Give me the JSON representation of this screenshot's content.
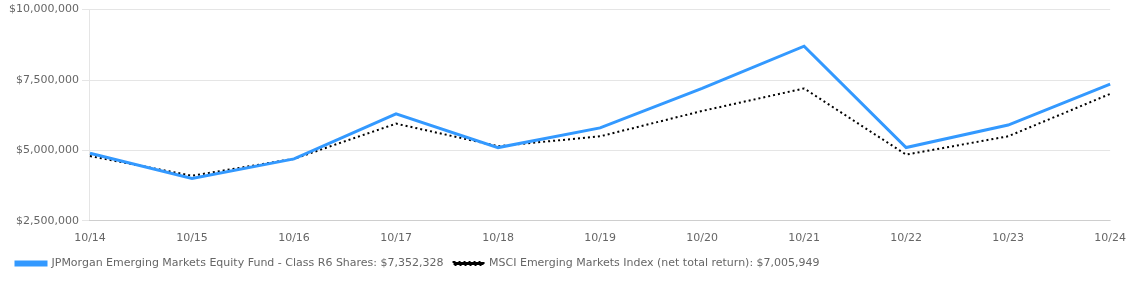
{
  "chart_data": {
    "type": "line",
    "categories": [
      "10/14",
      "10/15",
      "10/16",
      "10/17",
      "10/18",
      "10/19",
      "10/20",
      "10/21",
      "10/22",
      "10/23",
      "10/24"
    ],
    "series": [
      {
        "name": "JPMorgan Emerging Markets Equity Fund - Class R6 Shares: $7,352,328",
        "color": "#3399FF",
        "line_style": "solid",
        "values": [
          4900000,
          4000000,
          4700000,
          6300000,
          5100000,
          5800000,
          7200000,
          8700000,
          5100000,
          5900000,
          7352328
        ]
      },
      {
        "name": "MSCI Emerging Markets Index (net total return): $7,005,949",
        "color": "#000000",
        "line_style": "dotted",
        "values": [
          4800000,
          4100000,
          4700000,
          5950000,
          5150000,
          5500000,
          6400000,
          7200000,
          4850000,
          5500000,
          7005949
        ]
      }
    ],
    "ylim": [
      2500000,
      10000000
    ],
    "yticks": [
      {
        "value": 2500000,
        "label": "$2,500,000"
      },
      {
        "value": 5000000,
        "label": "$5,000,000"
      },
      {
        "value": 7500000,
        "label": "$7,500,000"
      },
      {
        "value": 10000000,
        "label": "$10,000,000"
      }
    ],
    "grid": true,
    "legend": "bottom"
  }
}
